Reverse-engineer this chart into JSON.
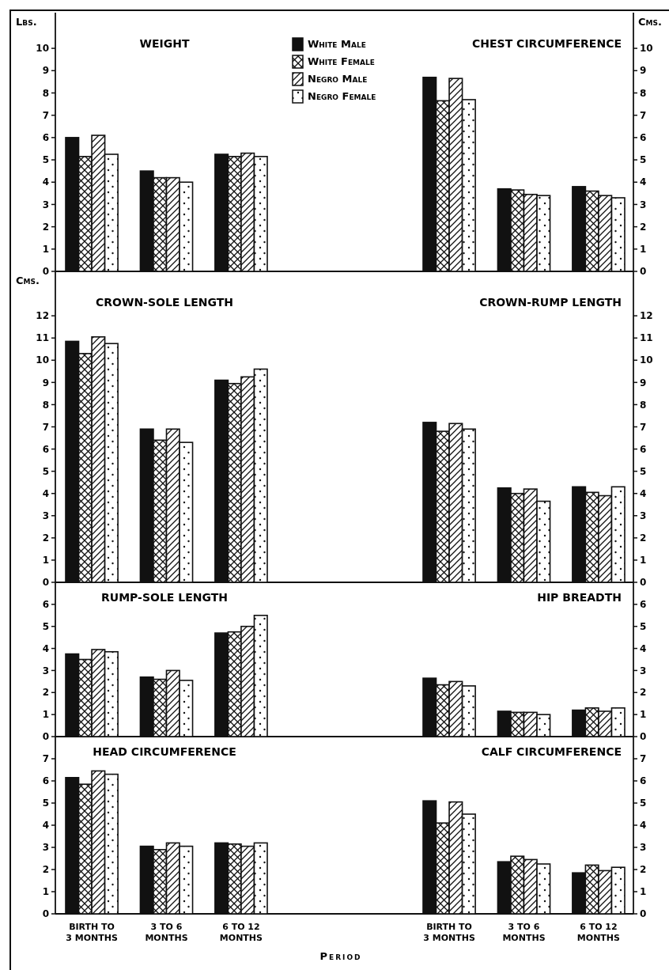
{
  "chart_data": [
    {
      "type": "bar",
      "title": "WEIGHT",
      "ylabel": "Lbs.",
      "categories": [
        null,
        null,
        null
      ],
      "ylim": [
        0,
        11.6
      ],
      "yticks": [
        0,
        1,
        2,
        3,
        4,
        5,
        6,
        7,
        8,
        9,
        10
      ],
      "tick_labels": "y",
      "legend": "top right",
      "series": [
        {
          "name": "White Male",
          "color": "#111111",
          "values": [
            6.0,
            4.5,
            5.25
          ]
        },
        {
          "name": "White Female",
          "color": "#111111",
          "values": [
            5.15,
            4.2,
            5.15
          ]
        },
        {
          "name": "Negro Male",
          "color": "#111111",
          "values": [
            6.1,
            4.2,
            5.3
          ]
        },
        {
          "name": "Negro Female",
          "color": "#111111",
          "values": [
            5.25,
            4.0,
            5.15
          ]
        }
      ]
    },
    {
      "type": "bar",
      "title": "CHEST CIRCUMFERENCE",
      "ylabel": "Cms.",
      "categories": [
        null,
        null,
        null
      ],
      "ylim": [
        0,
        11.6
      ],
      "yticks": [
        0,
        1,
        2,
        3,
        4,
        5,
        6,
        7,
        8,
        9,
        10
      ],
      "tick_labels": "y",
      "series": [
        {
          "color": "#111111",
          "values": [
            8.7,
            3.7,
            3.8
          ]
        },
        {
          "color": "#111111",
          "values": [
            7.65,
            3.65,
            3.6
          ]
        },
        {
          "color": "#111111",
          "values": [
            8.65,
            3.45,
            3.4
          ]
        },
        {
          "color": "#111111",
          "values": [
            7.7,
            3.4,
            3.3
          ]
        }
      ]
    },
    {
      "type": "bar",
      "title": "CROWN-SOLE LENGTH",
      "ylabel": "Cms.",
      "categories": [
        null,
        null,
        null
      ],
      "ylim": [
        0,
        14
      ],
      "yticks": [
        0,
        1,
        2,
        3,
        4,
        5,
        6,
        7,
        8,
        9,
        10,
        11,
        12
      ],
      "tick_labels": "y",
      "series": [
        {
          "color": "#111111",
          "values": [
            10.85,
            6.9,
            9.1
          ]
        },
        {
          "color": "#111111",
          "values": [
            10.3,
            6.4,
            8.95
          ]
        },
        {
          "color": "#111111",
          "values": [
            11.05,
            6.9,
            9.25
          ]
        },
        {
          "color": "#111111",
          "values": [
            10.75,
            6.3,
            9.6
          ]
        }
      ]
    },
    {
      "type": "bar",
      "title": "CROWN-RUMP LENGTH",
      "categories": [
        null,
        null,
        null
      ],
      "ylim": [
        0,
        14
      ],
      "yticks": [
        0,
        1,
        2,
        3,
        4,
        5,
        6,
        7,
        8,
        9,
        10,
        11,
        12
      ],
      "tick_labels": "y",
      "series": [
        {
          "color": "#111111",
          "values": [
            7.2,
            4.25,
            4.3
          ]
        },
        {
          "color": "#111111",
          "values": [
            6.8,
            4.0,
            4.05
          ]
        },
        {
          "color": "#111111",
          "values": [
            7.15,
            4.2,
            3.9
          ]
        },
        {
          "color": "#111111",
          "values": [
            6.9,
            3.65,
            4.3
          ]
        }
      ]
    },
    {
      "type": "bar",
      "title": "RUMP-SOLE LENGTH",
      "categories": [
        null,
        null,
        null
      ],
      "ylim": [
        0,
        7
      ],
      "yticks": [
        0,
        1,
        2,
        3,
        4,
        5,
        6
      ],
      "tick_labels": "y",
      "series": [
        {
          "color": "#111111",
          "values": [
            3.75,
            2.7,
            4.7
          ]
        },
        {
          "color": "#111111",
          "values": [
            3.5,
            2.6,
            4.75
          ]
        },
        {
          "color": "#111111",
          "values": [
            3.95,
            3.0,
            5.0
          ]
        },
        {
          "color": "#111111",
          "values": [
            3.85,
            2.55,
            5.5
          ]
        }
      ]
    },
    {
      "type": "bar",
      "title": "HIP BREADTH",
      "categories": [
        null,
        null,
        null
      ],
      "ylim": [
        0,
        7
      ],
      "yticks": [
        0,
        1,
        2,
        3,
        4,
        5,
        6
      ],
      "tick_labels": "y",
      "series": [
        {
          "color": "#111111",
          "values": [
            2.65,
            1.15,
            1.2
          ]
        },
        {
          "color": "#111111",
          "values": [
            2.35,
            1.1,
            1.3
          ]
        },
        {
          "color": "#111111",
          "values": [
            2.5,
            1.1,
            1.15
          ]
        },
        {
          "color": "#111111",
          "values": [
            2.3,
            1.0,
            1.3
          ]
        }
      ]
    },
    {
      "type": "bar",
      "title": "HEAD CIRCUMFERENCE",
      "xlabel": "Period",
      "categories": [
        "BIRTH TO 3 MONTHS",
        "3 TO 6 MONTHS",
        "6 TO 12 MONTHS"
      ],
      "ylim": [
        0,
        8
      ],
      "yticks": [
        0,
        1,
        2,
        3,
        4,
        5,
        6,
        7
      ],
      "series": [
        {
          "color": "#111111",
          "values": [
            6.15,
            3.05,
            3.2
          ]
        },
        {
          "color": "#111111",
          "values": [
            5.85,
            2.9,
            3.15
          ]
        },
        {
          "color": "#111111",
          "values": [
            6.45,
            3.2,
            3.05
          ]
        },
        {
          "color": "#111111",
          "values": [
            6.3,
            3.05,
            3.2
          ]
        }
      ]
    },
    {
      "type": "bar",
      "title": "CALF CIRCUMFERENCE",
      "categories": [
        "BIRTH TO 3 MONTHS",
        "3 TO 6 MONTHS",
        "6 TO 12 MONTHS"
      ],
      "ylim": [
        0,
        8
      ],
      "yticks": [
        0,
        1,
        2,
        3,
        4,
        5,
        6,
        7
      ],
      "series": [
        {
          "color": "#111111",
          "values": [
            5.1,
            2.35,
            1.85
          ]
        },
        {
          "color": "#111111",
          "values": [
            4.1,
            2.6,
            2.2
          ]
        },
        {
          "color": "#111111",
          "values": [
            5.05,
            2.45,
            1.95
          ]
        },
        {
          "color": "#111111",
          "values": [
            4.5,
            2.25,
            2.1
          ]
        }
      ]
    }
  ]
}
